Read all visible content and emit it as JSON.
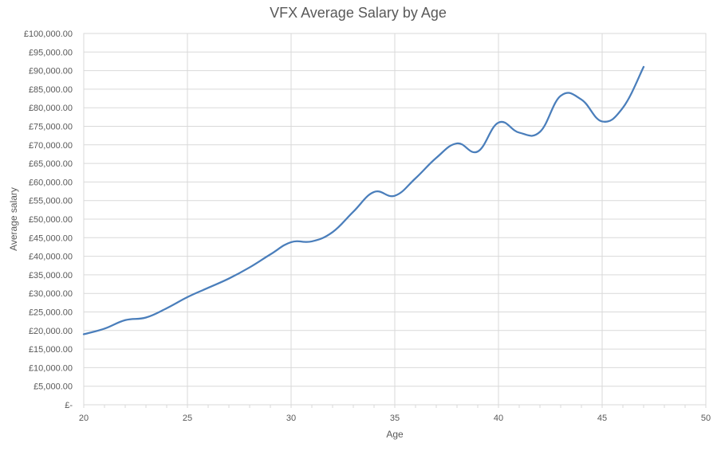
{
  "chart_data": {
    "type": "line",
    "title": "VFX Average Salary by Age",
    "xlabel": "Age",
    "ylabel": "Average salary",
    "xlim": [
      20,
      50
    ],
    "ylim": [
      0,
      100000
    ],
    "x_ticks": [
      20,
      25,
      30,
      35,
      40,
      45,
      50
    ],
    "y_ticks": [
      0,
      5000,
      10000,
      15000,
      20000,
      25000,
      30000,
      35000,
      40000,
      45000,
      50000,
      55000,
      60000,
      65000,
      70000,
      75000,
      80000,
      85000,
      90000,
      95000,
      100000
    ],
    "y_tick_labels": [
      "£-",
      "£5,000.00",
      "£10,000.00",
      "£15,000.00",
      "£20,000.00",
      "£25,000.00",
      "£30,000.00",
      "£35,000.00",
      "£40,000.00",
      "£45,000.00",
      "£50,000.00",
      "£55,000.00",
      "£60,000.00",
      "£65,000.00",
      "£70,000.00",
      "£75,000.00",
      "£80,000.00",
      "£85,000.00",
      "£90,000.00",
      "£95,000.00",
      "£100,000.00"
    ],
    "grid": true,
    "line_color": "#4a7ebb",
    "series": [
      {
        "x": [
          20,
          21,
          22,
          23,
          24,
          25,
          26,
          27,
          28,
          29,
          30,
          31,
          32,
          33,
          34,
          35,
          36,
          37,
          38,
          39,
          40,
          41,
          42,
          43,
          44,
          45,
          46,
          47
        ],
        "values": [
          19000,
          20500,
          22800,
          23500,
          26000,
          29000,
          31500,
          34000,
          37000,
          40500,
          43800,
          44000,
          46500,
          52000,
          57300,
          56300,
          61000,
          66500,
          70400,
          68200,
          76000,
          73300,
          73500,
          83200,
          82200,
          76300,
          80000,
          91000
        ]
      }
    ]
  }
}
